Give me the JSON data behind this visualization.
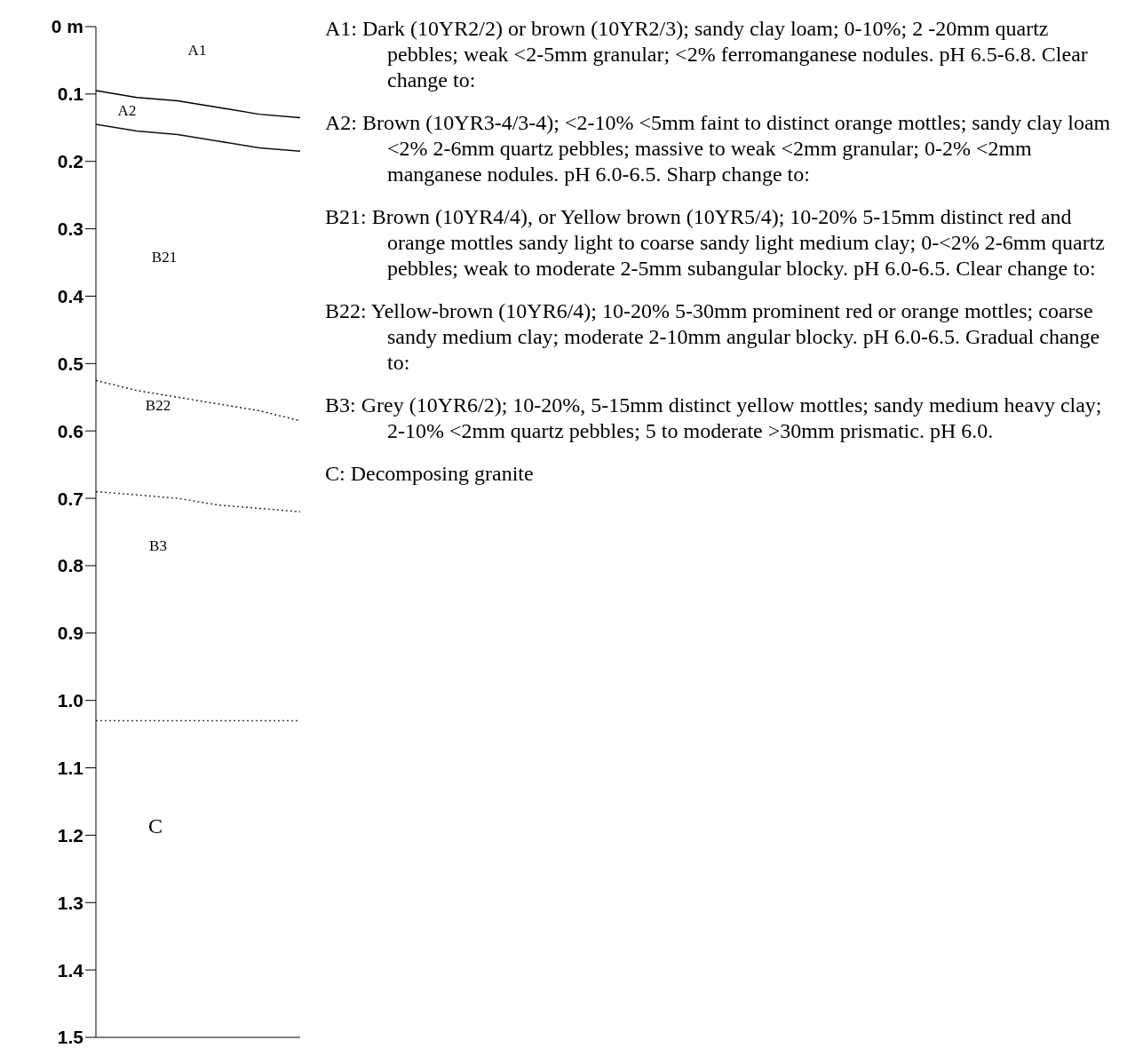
{
  "chart_data": {
    "type": "line",
    "categories": [
      null,
      null,
      null,
      null,
      null,
      null
    ],
    "tick_labels": "y",
    "ylim": [
      1.5,
      0
    ],
    "yticks": [
      {
        "value": 0,
        "label": "0 m"
      },
      0.1,
      0.2,
      0.3,
      0.4,
      0.5,
      0.6,
      0.7,
      0.8,
      0.9,
      {
        "value": 1,
        "label": "1.0"
      },
      1.1,
      1.2,
      1.3,
      1.4,
      1.5
    ],
    "marker": "none",
    "series": [
      {
        "color": "#000000",
        "line_style": "solid",
        "values": [
          0.095,
          0.105,
          0.11,
          0.12,
          0.13,
          0.135
        ]
      },
      {
        "color": "#111111",
        "line_style": "solid",
        "values": [
          0.145,
          0.155,
          0.16,
          0.17,
          0.18,
          0.185
        ]
      },
      {
        "color": "#222222",
        "line_style": "dotted",
        "values": [
          0.525,
          0.54,
          0.55,
          0.56,
          0.57,
          0.585
        ]
      },
      {
        "color": "#333333",
        "line_style": "dotted",
        "values": [
          0.69,
          0.695,
          0.7,
          0.71,
          0.715,
          0.72
        ]
      },
      {
        "color": "#444444",
        "line_style": "dotted",
        "values": [
          1.03,
          1.03,
          1.03,
          1.03,
          1.03,
          1.03
        ]
      }
    ],
    "annotations": [
      "A1",
      "A2",
      "B21",
      "B22",
      "B3",
      "C",
      "A1: Dark (10YR2/2) or brown (10YR2/3); sandy clay loam; 0-10%; 2 -20mm quartz pebbles; weak <2-5mm granular; <2% ferromanganese nodules. pH 6.5-6.8. Clear change to:",
      "A2: Brown (10YR3-4/3-4); <2-10% <5mm faint to distinct orange mottles; sandy clay loam <2% 2-6mm quartz pebbles; massive to weak <2mm granular; 0-2% <2mm manganese nodules. pH 6.0-6.5. Sharp change to:",
      "B21: Brown (10YR4/4), or Yellow brown (10YR5/4); 10-20% 5-15mm distinct red and orange mottles sandy light to coarse sandy light medium clay; 0-<2% 2-6mm quartz pebbles; weak to moderate 2-5mm subangular blocky. pH 6.0-6.5. Clear change to:",
      "B22: Yellow-brown (10YR6/4); 10-20% 5-30mm prominent red or orange mottles; coarse sandy medium clay; moderate 2-10mm angular blocky. pH 6.0-6.5. Gradual change to:",
      "B3: Grey (10YR6/2); 10-20%, 5-15mm distinct yellow mottles; sandy medium heavy clay; 2-10% <2mm quartz pebbles; 5 to moderate >30mm prismatic. pH 6.0.",
      "C: Decomposing granite"
    ]
  }
}
